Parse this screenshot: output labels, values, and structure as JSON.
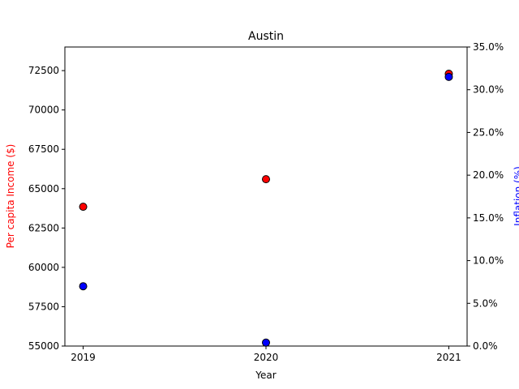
{
  "chart_data": {
    "type": "scatter",
    "title": "Austin",
    "xlabel": "Year",
    "ylabel_left": "Per capita Income ($)",
    "ylabel_right": "Inflation (%)",
    "x": [
      "2019",
      "2020",
      "2021"
    ],
    "xlim": [
      -0.1,
      2.1
    ],
    "left_axis": {
      "ylim": [
        55000,
        74000
      ],
      "ticks": [
        55000,
        57500,
        60000,
        62500,
        65000,
        67500,
        70000,
        72500
      ],
      "tick_labels": [
        "55000",
        "57500",
        "60000",
        "62500",
        "65000",
        "67500",
        "70000",
        "72500"
      ],
      "color": "#ff0000"
    },
    "right_axis": {
      "ylim": [
        0,
        35
      ],
      "ticks": [
        0,
        5,
        10,
        15,
        20,
        25,
        30,
        35
      ],
      "tick_labels": [
        "0.0%",
        "5.0%",
        "10.0%",
        "15.0%",
        "20.0%",
        "25.0%",
        "30.0%",
        "35.0%"
      ],
      "color": "#0000ff"
    },
    "series": [
      {
        "axis": "left",
        "color": "#ff0000",
        "values": [
          63850,
          65600,
          72300
        ]
      },
      {
        "axis": "right",
        "color": "#0000ff",
        "values": [
          7.0,
          0.4,
          31.5
        ]
      }
    ],
    "grid": false,
    "legend": "none"
  }
}
